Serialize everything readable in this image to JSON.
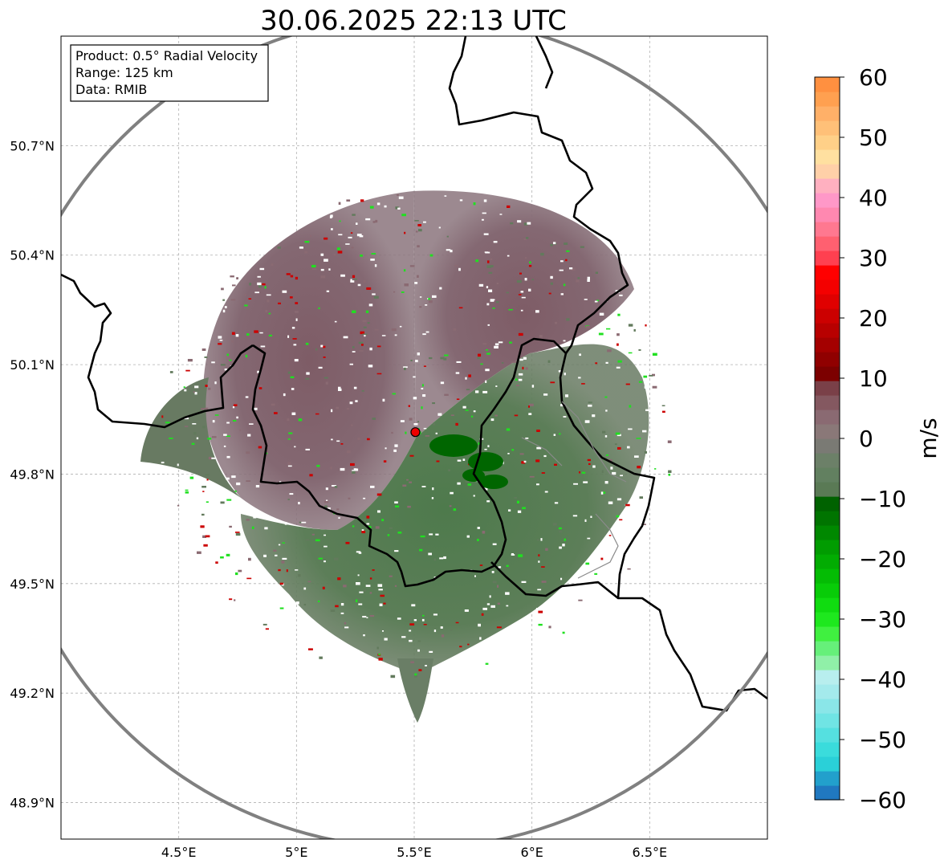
{
  "title": "30.06.2025 22:13 UTC",
  "info_box": {
    "lines": [
      "Product: 0.5° Radial Velocity",
      "Range: 125 km",
      "Data: RMIB"
    ]
  },
  "map": {
    "lon_range": [
      4.0,
      7.0
    ],
    "lat_range": [
      48.8,
      51.0
    ],
    "lon_ticks": [
      {
        "v": 4.5,
        "label": "4.5°E"
      },
      {
        "v": 5.0,
        "label": "5°E"
      },
      {
        "v": 5.5,
        "label": "5.5°E"
      },
      {
        "v": 6.0,
        "label": "6°E"
      },
      {
        "v": 6.5,
        "label": "6.5°E"
      }
    ],
    "lat_ticks": [
      {
        "v": 48.9,
        "label": "48.9°N"
      },
      {
        "v": 49.2,
        "label": "49.2°N"
      },
      {
        "v": 49.5,
        "label": "49.5°N"
      },
      {
        "v": 49.8,
        "label": "49.8°N"
      },
      {
        "v": 50.1,
        "label": "50.1°N"
      },
      {
        "v": 50.4,
        "label": "50.4°N"
      },
      {
        "v": 50.7,
        "label": "50.7°N"
      }
    ],
    "radar_site": {
      "lon": 5.505,
      "lat": 49.915
    },
    "range_ring_color": "#808080",
    "border_color": "#000000"
  },
  "colorbar": {
    "label": "m/s",
    "range": [
      -60,
      60
    ],
    "ticks": [
      {
        "v": 60,
        "label": "60"
      },
      {
        "v": 50,
        "label": "50"
      },
      {
        "v": 40,
        "label": "40"
      },
      {
        "v": 30,
        "label": "30"
      },
      {
        "v": 20,
        "label": "20"
      },
      {
        "v": 10,
        "label": "10"
      },
      {
        "v": 0,
        "label": "0"
      },
      {
        "v": -10,
        "label": "−10"
      },
      {
        "v": -20,
        "label": "−20"
      },
      {
        "v": -30,
        "label": "−30"
      },
      {
        "v": -40,
        "label": "−40"
      },
      {
        "v": -50,
        "label": "−50"
      },
      {
        "v": -60,
        "label": "−60"
      }
    ],
    "colors": [
      "#2078c0",
      "#22a0cc",
      "#2ad0d8",
      "#3adcdc",
      "#55e0e0",
      "#70e4e4",
      "#8ae6e8",
      "#a4eaec",
      "#b8eeee",
      "#90f0a8",
      "#66f07a",
      "#40f040",
      "#1ee81e",
      "#10dc10",
      "#08cc08",
      "#04bc04",
      "#02ac02",
      "#019c01",
      "#008800",
      "#007400",
      "#006200",
      "#5a7a55",
      "#628060",
      "#6c8068",
      "#7a7a74",
      "#8a7878",
      "#8a6a72",
      "#845860",
      "#7a4048",
      "#7c0000",
      "#900000",
      "#a40000",
      "#b80000",
      "#cc0000",
      "#e00000",
      "#f40000",
      "#ff0000",
      "#ff4050",
      "#ff6070",
      "#ff7890",
      "#ff88b0",
      "#ff98c8",
      "#ffb0c0",
      "#ffd0a8",
      "#ffe0a0",
      "#ffd088",
      "#ffc078",
      "#ffb068",
      "#ffa050",
      "#ff9040"
    ]
  }
}
